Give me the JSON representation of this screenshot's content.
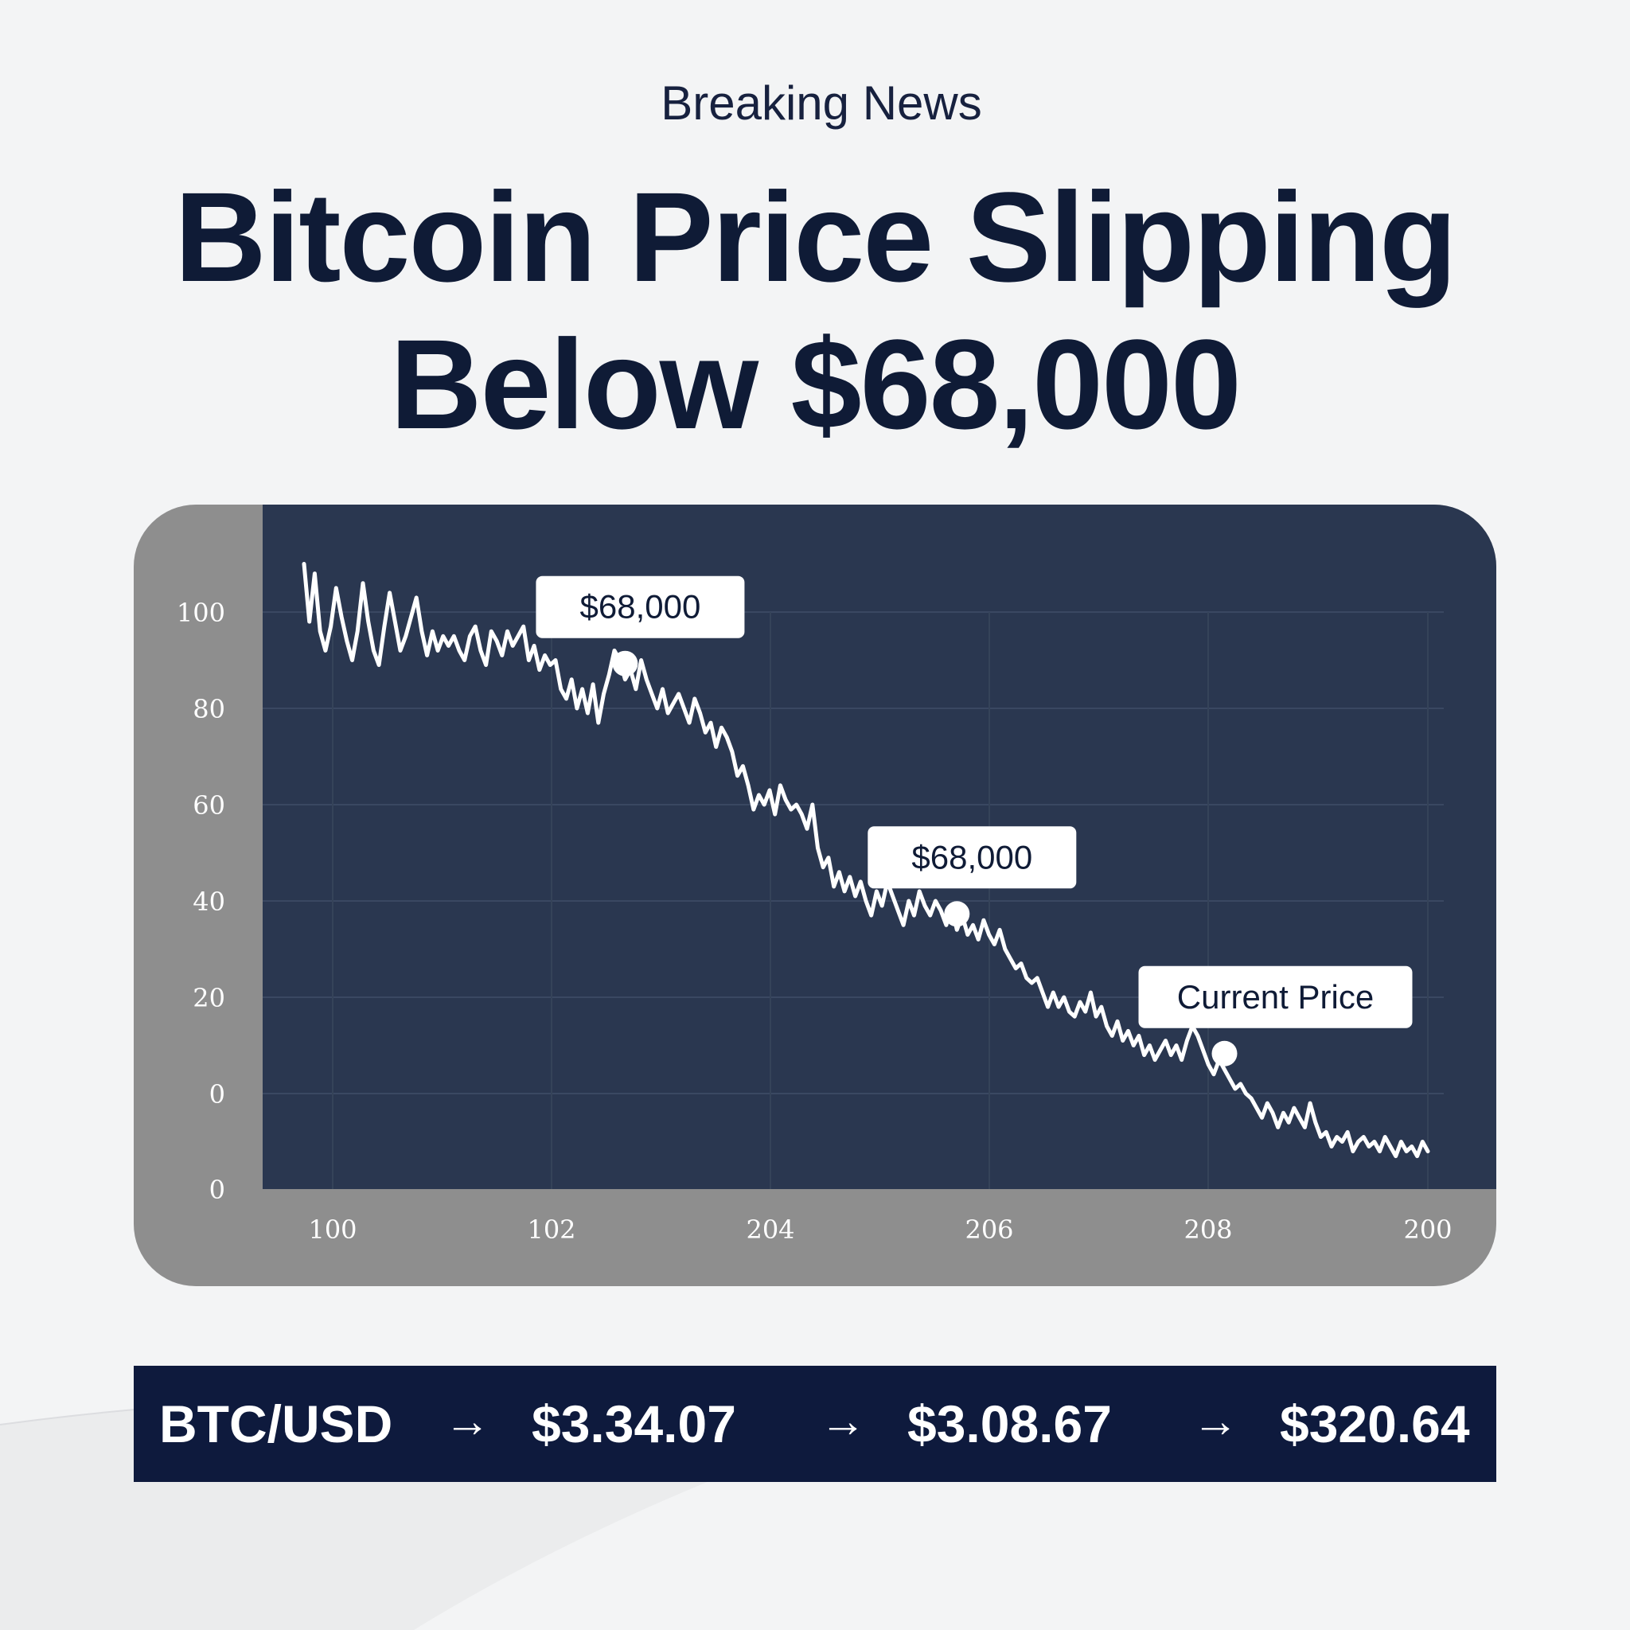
{
  "header": {
    "kicker": "Breaking News",
    "headline_line1": "Bitcoin Price Slipping",
    "headline_line2": "Below $68,000"
  },
  "colors": {
    "page_bg": "#f3f4f5",
    "plot_bg": "#2a3750",
    "card_frame": "#8e8e8e",
    "line": "#ffffff",
    "ticker_bg": "#0e1a3d",
    "text_dark": "#0f1b36"
  },
  "chart_data": {
    "type": "line",
    "title": "",
    "xlabel": "",
    "ylabel": "",
    "grid": true,
    "y_ticks": [
      "100",
      "80",
      "60",
      "40",
      "20",
      "0",
      "0"
    ],
    "x_ticks": [
      "100",
      "102",
      "204",
      "206",
      "208",
      "200"
    ],
    "series": [
      {
        "values": [
          110,
          98,
          108,
          96,
          92,
          97,
          105,
          99,
          94,
          90,
          96,
          106,
          98,
          92,
          89,
          97,
          104,
          98,
          92,
          95,
          99,
          103,
          96,
          91,
          96,
          92,
          95,
          93,
          95,
          92,
          90,
          95,
          97,
          92,
          89,
          96,
          94,
          91,
          96,
          93,
          95,
          97,
          90,
          93,
          88,
          91,
          89,
          90,
          84,
          82,
          86,
          80,
          84,
          79,
          85,
          77,
          83,
          87,
          92,
          90,
          86,
          88,
          84,
          90,
          86,
          83,
          80,
          84,
          79,
          81,
          83,
          80,
          77,
          82,
          79,
          75,
          77,
          72,
          76,
          74,
          71,
          66,
          68,
          64,
          59,
          62,
          60,
          63,
          58,
          64,
          61,
          59,
          60,
          58,
          55,
          60,
          51,
          47,
          49,
          43,
          46,
          42,
          45,
          41,
          44,
          40,
          37,
          42,
          39,
          44,
          41,
          38,
          35,
          40,
          37,
          42,
          39,
          37,
          40,
          38,
          35,
          39,
          34,
          37,
          33,
          35,
          32,
          36,
          33,
          31,
          34,
          30,
          28,
          26,
          27,
          24,
          23,
          24,
          21,
          18,
          21,
          18,
          20,
          17,
          16,
          19,
          17,
          21,
          16,
          18,
          14,
          12,
          15,
          11,
          13,
          10,
          12,
          8,
          10,
          7,
          9,
          11,
          8,
          10,
          7,
          11,
          14,
          12,
          9,
          6,
          4,
          7,
          5,
          3,
          1,
          2,
          0,
          -1,
          -3,
          -5,
          -2,
          -4,
          -7,
          -4,
          -6,
          -3,
          -5,
          -7,
          -2,
          -6,
          -9,
          -8,
          -11,
          -9,
          -10,
          -8,
          -12,
          -10,
          -9,
          -11,
          -10,
          -12,
          -9,
          -11,
          -13,
          -10,
          -12,
          -11,
          -13,
          -10,
          -12
        ]
      }
    ],
    "annotations": [
      {
        "label": "$68,000",
        "index": 60
      },
      {
        "label": "$68,000",
        "index": 122
      },
      {
        "label": "Current Price",
        "index": 172
      }
    ]
  },
  "ticker": {
    "pair": "BTC/USD",
    "arrow": "→",
    "prices": [
      "$3.34.07",
      "$3.08.67",
      "$320.64"
    ]
  }
}
